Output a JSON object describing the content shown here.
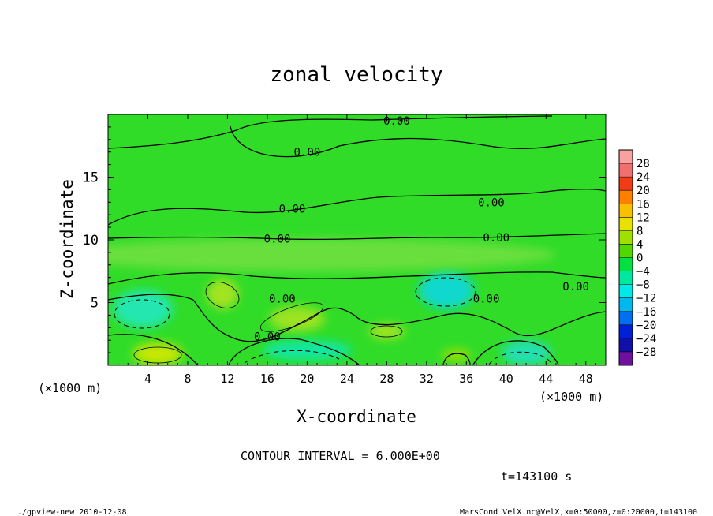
{
  "chart_data": {
    "type": "heatmap",
    "title": "zonal velocity",
    "xlabel": "X-coordinate",
    "ylabel": "Z-coordinate",
    "x_unit": "(×1000 m)",
    "x_ticks": [
      "4",
      "8",
      "12",
      "16",
      "20",
      "24",
      "28",
      "32",
      "36",
      "40",
      "44",
      "48"
    ],
    "y_ticks": [
      "5",
      "10",
      "15"
    ],
    "xlim": [
      0,
      50
    ],
    "ylim": [
      0,
      20
    ],
    "colorbar": {
      "levels": [
        "28",
        "24",
        "20",
        "16",
        "12",
        "8",
        "4",
        "0",
        "−4",
        "−8",
        "−12",
        "−16",
        "−20",
        "−24",
        "−28"
      ],
      "colors": [
        "#f9a0a0",
        "#f07070",
        "#f03c14",
        "#ff8000",
        "#f8c000",
        "#e8e000",
        "#a0e000",
        "#50d800",
        "#00e040",
        "#00e8a0",
        "#00e8e8",
        "#00b8f0",
        "#0070f0",
        "#0020d8",
        "#1010a8",
        "#7010a0"
      ]
    },
    "contour_labels": [
      {
        "text": "0.00",
        "x": 29.0,
        "y": 19.5
      },
      {
        "text": "0.00",
        "x": 20.0,
        "y": 17.0
      },
      {
        "text": "0.00",
        "x": 18.5,
        "y": 12.5
      },
      {
        "text": "0.00",
        "x": 38.5,
        "y": 13.0
      },
      {
        "text": "0.00",
        "x": 17.0,
        "y": 10.1
      },
      {
        "text": "0.00",
        "x": 39.0,
        "y": 10.2
      },
      {
        "text": "0.00",
        "x": 17.5,
        "y": 5.3
      },
      {
        "text": "0.00",
        "x": 38.0,
        "y": 5.3
      },
      {
        "text": "0.00",
        "x": 47.0,
        "y": 6.3
      },
      {
        "text": "0.00",
        "x": 16.0,
        "y": 2.3
      }
    ],
    "blobs": [
      {
        "x": 5.0,
        "y": 0.9,
        "rx": 2.5,
        "ry": 0.9,
        "color": "#d8e800"
      },
      {
        "x": 3.5,
        "y": 4.5,
        "rx": 3.0,
        "ry": 1.5,
        "color": "#20e8c0"
      },
      {
        "x": 11.5,
        "y": 5.7,
        "rx": 1.6,
        "ry": 1.2,
        "color": "#b0e420"
      },
      {
        "x": 19.0,
        "y": 3.7,
        "rx": 2.8,
        "ry": 1.0,
        "color": "#a8e420"
      },
      {
        "x": 20.0,
        "y": 1.2,
        "rx": 4.5,
        "ry": 0.8,
        "color": "#10e8b0"
      },
      {
        "x": 28.0,
        "y": 2.7,
        "rx": 1.8,
        "ry": 0.6,
        "color": "#b0e420"
      },
      {
        "x": 34.0,
        "y": 6.0,
        "rx": 2.8,
        "ry": 1.5,
        "color": "#10d8e0"
      },
      {
        "x": 42.0,
        "y": 1.0,
        "rx": 2.5,
        "ry": 1.0,
        "color": "#20e0c0"
      },
      {
        "x": 35.0,
        "y": 0.8,
        "rx": 1.5,
        "ry": 0.5,
        "color": "#a0e000"
      },
      {
        "x": 20.0,
        "y": 8.8,
        "rx": 25.0,
        "ry": 1.3,
        "color": "#70e040"
      }
    ]
  },
  "annotations": {
    "contour_interval": "CONTOUR INTERVAL = 6.000E+00",
    "time": "t=143100 s",
    "footer_left": "./gpview-new  2010-12-08",
    "footer_right": "MarsCond_VelX.nc@VelX,x=0:50000,z=0:20000,t=143100"
  }
}
